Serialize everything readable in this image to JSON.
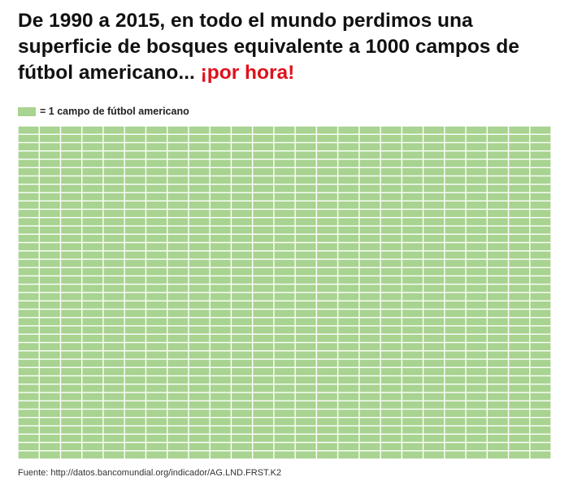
{
  "title": {
    "main": "De 1990 a 2015, en todo el mundo perdimos una superficie de bosques equivalente a 1000 campos de fútbol americano... ",
    "highlight": "¡por hora!"
  },
  "legend": {
    "label": "= 1 campo de fútbol americano"
  },
  "colors": {
    "cell": "#a8d390",
    "highlight": "#e0101a",
    "text": "#111111"
  },
  "chart_data": {
    "type": "waffle",
    "total_units": 1000,
    "rows": 40,
    "columns": 25,
    "unit_label": "1 campo de fútbol americano",
    "period": "1990 a 2015",
    "rate": "por hora"
  },
  "source": {
    "text": "Fuente: http://datos.bancomundial.org/indicador/AG.LND.FRST.K2"
  }
}
